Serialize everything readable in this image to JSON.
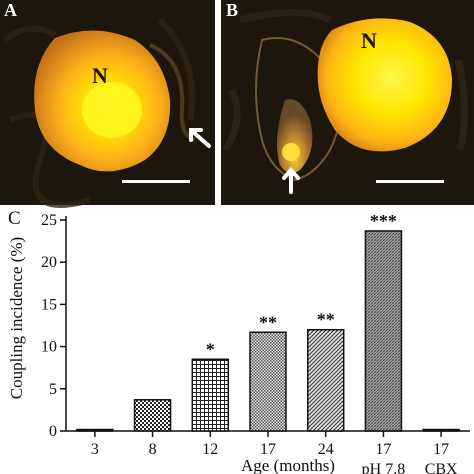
{
  "panels": {
    "a": {
      "letter": "A",
      "nucleus": "N"
    },
    "b": {
      "letter": "B",
      "nucleus": "N"
    },
    "c": {
      "letter": "C"
    }
  },
  "colors": {
    "micrograph_bg": "#1c150c",
    "cell_outer": "#d28a1a",
    "cell_inner": "#ffe600",
    "arrow": "#ffffff",
    "bar_border": "#111111"
  },
  "chart_data": {
    "type": "bar",
    "ylabel": "Coupling incidence (%)",
    "xlabel": "Age (months)",
    "ylim": [
      0,
      25
    ],
    "yticks": [
      0,
      5,
      10,
      15,
      20,
      25
    ],
    "categories": [
      "3",
      "8",
      "12",
      "17",
      "24",
      "17",
      "17"
    ],
    "group_labels": [
      "",
      "",
      "",
      "",
      "",
      "pH 7.8",
      "CBX"
    ],
    "values": [
      0.1,
      3.7,
      8.5,
      11.7,
      12.0,
      23.7,
      0.1
    ],
    "significance": [
      "",
      "",
      "*",
      "**",
      "**",
      "***",
      ""
    ],
    "patterns": [
      "solid",
      "checker",
      "grid",
      "checker-fine",
      "diag",
      "diag-dense",
      "solid"
    ],
    "grid": false
  }
}
